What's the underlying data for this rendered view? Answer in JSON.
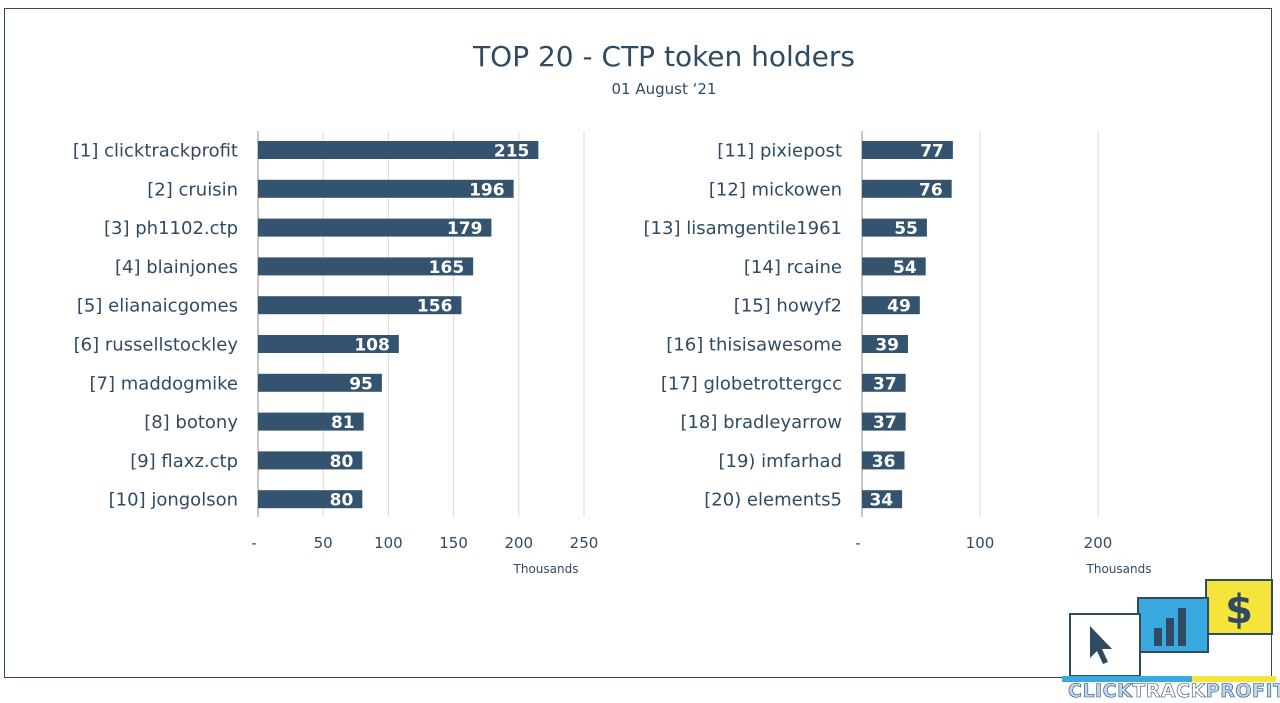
{
  "title": "TOP 20 - CTP token holders",
  "subtitle": "01 August ‘21",
  "logo_text": {
    "part1": "CLICK",
    "part2": "TRACK",
    "part3": "PROFIT"
  },
  "colors": {
    "bar": "#34536e",
    "text": "#2f4b63",
    "grid": "#d9d9d9",
    "axis": "#8c8c8c",
    "logo_blue": "#3aa9e0",
    "logo_yellow": "#f5e43b"
  },
  "chart_data": [
    {
      "type": "bar",
      "orientation": "horizontal",
      "title": "TOP 20 - CTP token holders",
      "subtitle": "01 August ‘21",
      "categories": [
        "[1] clicktrackprofit",
        "[2] cruisin",
        "[3] ph1102.ctp",
        "[4] blainjones",
        "[5] elianaicgomes",
        "[6] russellstockley",
        "[7] maddogmike",
        "[8] botony",
        "[9] flaxz.ctp",
        "[10] jongolson"
      ],
      "values": [
        215,
        196,
        179,
        165,
        156,
        108,
        95,
        81,
        80,
        80
      ],
      "xlabel": "Thousands",
      "xticks": [
        "-",
        "50",
        "100",
        "150",
        "200",
        "250"
      ],
      "xlim": [
        0,
        250
      ],
      "grid": true
    },
    {
      "type": "bar",
      "orientation": "horizontal",
      "categories": [
        "[11] pixiepost",
        "[12] mickowen",
        "[13] lisamgentile1961",
        "[14] rcaine",
        "[15] howyf2",
        "[16] thisisawesome",
        "[17] globetrottergcc",
        "[18] bradleyarrow",
        "[19) imfarhad",
        "[20) elements5"
      ],
      "values": [
        77,
        76,
        55,
        54,
        49,
        39,
        37,
        37,
        36,
        34
      ],
      "xlabel": "Thousands",
      "xticks": [
        "-",
        "100",
        "200"
      ],
      "xlim": [
        0,
        200
      ],
      "grid": true
    }
  ]
}
